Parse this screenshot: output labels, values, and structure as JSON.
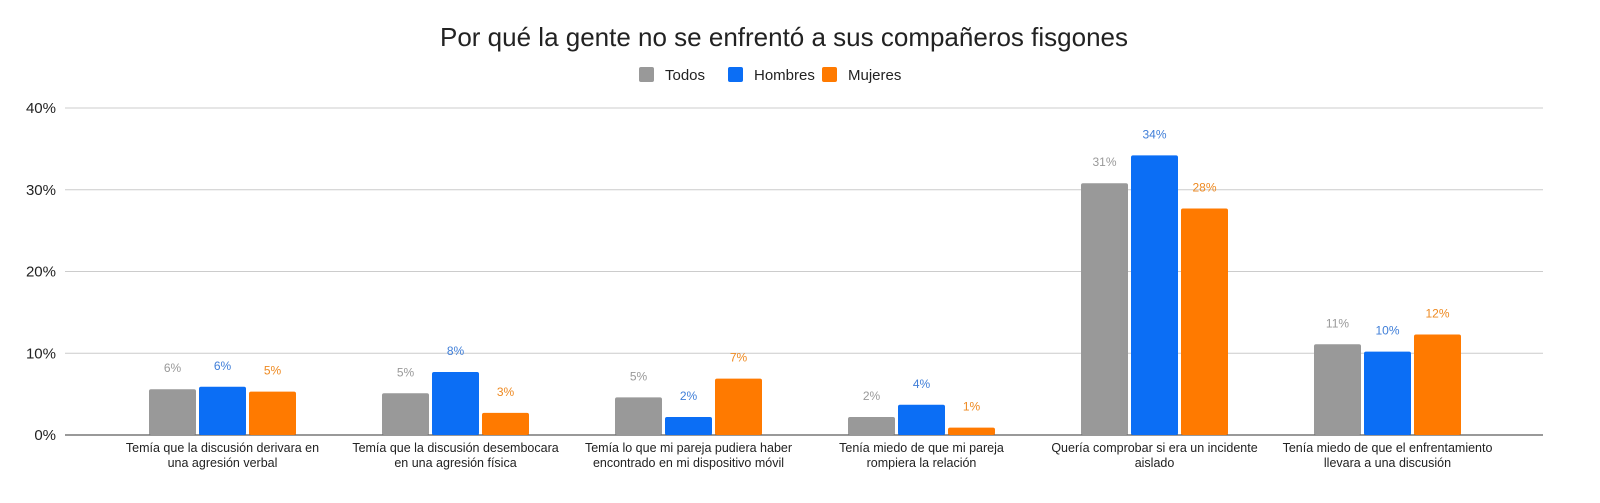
{
  "chart_data": {
    "type": "bar",
    "title": "Por qué la gente no se enfrentó a sus compañeros fisgones",
    "xlabel": "",
    "ylabel": "",
    "ylim": [
      0,
      40
    ],
    "yticks": [
      "0%",
      "10%",
      "20%",
      "30%",
      "40%"
    ],
    "ytick_values": [
      0,
      10,
      20,
      30,
      40
    ],
    "grid": true,
    "legend_position": "top-center",
    "categories": [
      [
        "Temía que la discusión derivara en",
        "una agresión verbal"
      ],
      [
        "Temía que la discusión desembocara",
        "en una agresión física"
      ],
      [
        "Temía lo que mi pareja pudiera haber",
        "encontrado en mi dispositivo móvil"
      ],
      [
        "Tenía miedo de que mi pareja",
        "rompiera la relación"
      ],
      [
        "Quería comprobar si era un incidente",
        "aislado"
      ],
      [
        "Tenía miedo de que el enfrentamiento",
        "llevara a una discusión"
      ]
    ],
    "series": [
      {
        "name": "Todos",
        "color": "#999999",
        "values": [
          5.6,
          5.1,
          4.6,
          2.2,
          30.8,
          11.1
        ],
        "labels": [
          "6%",
          "5%",
          "5%",
          "2%",
          "31%",
          "11%"
        ]
      },
      {
        "name": "Hombres",
        "color": "#0b6ef5",
        "values": [
          5.9,
          7.7,
          2.2,
          3.7,
          34.2,
          10.2
        ],
        "labels": [
          "6%",
          "8%",
          "2%",
          "4%",
          "34%",
          "10%"
        ]
      },
      {
        "name": "Mujeres",
        "color": "#ff7a00",
        "values": [
          5.3,
          2.7,
          6.9,
          0.9,
          27.7,
          12.3
        ],
        "labels": [
          "5%",
          "3%",
          "7%",
          "1%",
          "28%",
          "12%"
        ]
      }
    ],
    "label_colors": [
      "#999999",
      "#3f7ed8",
      "#ee8a22"
    ]
  }
}
